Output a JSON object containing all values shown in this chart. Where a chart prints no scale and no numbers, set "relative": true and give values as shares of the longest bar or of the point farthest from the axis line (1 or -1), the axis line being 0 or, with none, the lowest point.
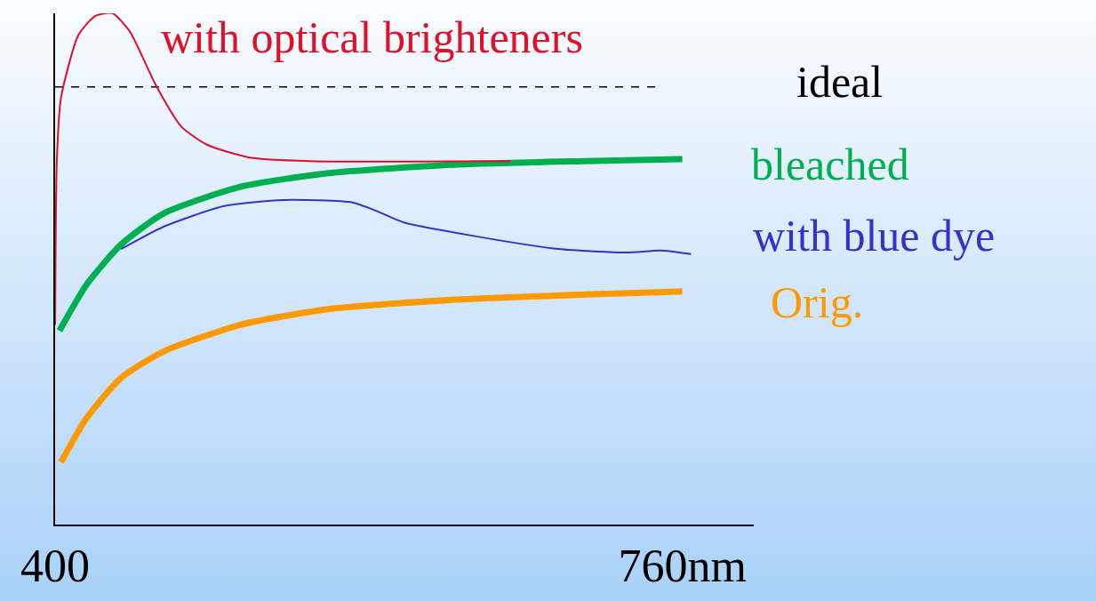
{
  "chart_data": {
    "type": "line",
    "relative": true,
    "legend": false,
    "grid": false,
    "tick_labels": "x",
    "xlim": [
      400,
      801
    ],
    "xticks": [
      400,
      {
        "value": 760,
        "label": "760nm"
      }
    ],
    "series": [
      {
        "name": "with optical brighteners",
        "color": "#e0102a",
        "x": [
          400,
          401,
          403.4,
          413.3,
          423.1,
          433,
          442.8,
          457.6,
          472.3,
          487.1,
          511.7,
          546.1,
          605.1,
          661.7
        ],
        "values": [
          0.391,
          0.713,
          0.835,
          0.957,
          0.995,
          1.0,
          0.965,
          0.861,
          0.779,
          0.743,
          0.718,
          0.711,
          0.71,
          0.711
        ]
      },
      {
        "name": "ideal",
        "color": "#000000",
        "line_style": "dashed",
        "x": [
          400,
          746.3
        ],
        "values": [
          0.856,
          0.856
        ]
      },
      {
        "name": "bleached",
        "color": "#00b050",
        "x": [
          402.5,
          418.2,
          437.9,
          462.5,
          506.7,
          555.9,
          629.7,
          703.5,
          760
        ],
        "values": [
          0.379,
          0.47,
          0.548,
          0.609,
          0.661,
          0.687,
          0.704,
          0.711,
          0.715
        ]
      },
      {
        "name": "with blue dye",
        "color": "#3333cc",
        "x": [
          437.9,
          462.5,
          496.9,
          531.3,
          570.7,
          585.4,
          600.2,
          639.5,
          688.7,
          728.1,
          747.8,
          765
        ],
        "values": [
          0.539,
          0.583,
          0.623,
          0.635,
          0.63,
          0.612,
          0.591,
          0.565,
          0.539,
          0.532,
          0.536,
          0.529
        ]
      },
      {
        "name": "Orig.",
        "color": "#ff9900",
        "x": [
          403.4,
          418.2,
          437.9,
          462.5,
          506.7,
          555.9,
          629.7,
          703.5,
          760
        ],
        "values": [
          0.122,
          0.209,
          0.287,
          0.339,
          0.391,
          0.421,
          0.44,
          0.45,
          0.456
        ]
      }
    ]
  }
}
